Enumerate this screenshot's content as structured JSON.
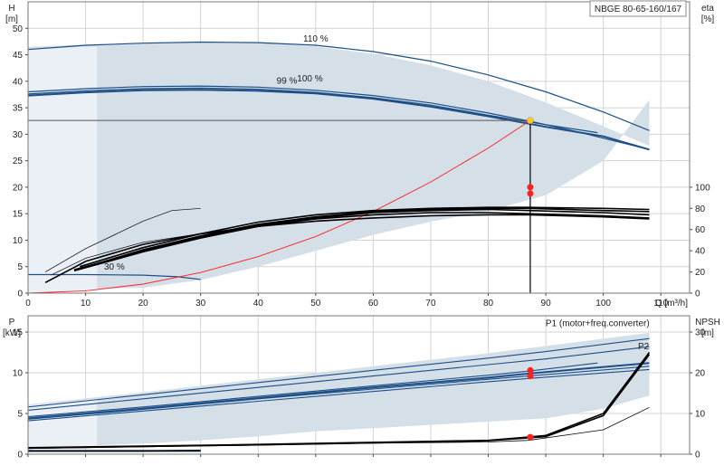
{
  "title": "NBGE 80-65-160/167",
  "chart_data": [
    {
      "panel": "pump-performance",
      "type": "line",
      "xlabel": "Q [m³/h]",
      "xlim": [
        0,
        115
      ],
      "x_ticks": [
        0,
        10,
        20,
        30,
        40,
        50,
        60,
        70,
        80,
        90,
        100,
        110
      ],
      "left_axis": {
        "label_top": "H",
        "label_unit": "[m]",
        "ylim": [
          0,
          55
        ],
        "ticks": [
          0,
          5,
          10,
          15,
          20,
          25,
          30,
          35,
          40,
          45,
          50
        ]
      },
      "right_axis": {
        "label_top": "eta",
        "label_unit": "[%]",
        "ylim": [
          0,
          275
        ],
        "ticks": [
          0,
          20,
          40,
          60,
          80,
          100
        ]
      },
      "grid": true,
      "colors": {
        "envelope": "#d5dfe8",
        "curve": "#1d4f87",
        "eta": "#000000",
        "system": "#ff2020",
        "duty": "#ff2020",
        "duty_point": "#f7d117"
      },
      "envelope": {
        "upper": [
          [
            0,
            46.5
          ],
          [
            10,
            46.9
          ],
          [
            20,
            47.2
          ],
          [
            30,
            47.4
          ],
          [
            40,
            47.3
          ],
          [
            50,
            46.6
          ],
          [
            60,
            45.2
          ],
          [
            70,
            43.0
          ],
          [
            80,
            40.0
          ],
          [
            90,
            36.0
          ],
          [
            100,
            31.5
          ],
          [
            108,
            27.8
          ]
        ],
        "lower": [
          [
            108,
            27.8
          ],
          [
            108,
            36.5
          ],
          [
            100,
            25
          ],
          [
            90,
            18.5
          ],
          [
            80,
            15.5
          ],
          [
            70,
            13.5
          ],
          [
            60,
            11
          ],
          [
            50,
            8
          ],
          [
            40,
            5
          ],
          [
            30,
            2.5
          ],
          [
            20,
            1
          ],
          [
            12,
            0.8
          ],
          [
            12,
            0.8
          ]
        ]
      },
      "duty_point": {
        "q": 87.3,
        "h": 32.6,
        "eta_markers": [
          20,
          18.8
        ]
      },
      "series": [
        {
          "name": "110 %",
          "axis": "left",
          "label": "110 %",
          "points": [
            [
              0,
              46.0
            ],
            [
              10,
              46.8
            ],
            [
              20,
              47.2
            ],
            [
              30,
              47.4
            ],
            [
              40,
              47.3
            ],
            [
              50,
              46.8
            ],
            [
              60,
              45.6
            ],
            [
              70,
              43.8
            ],
            [
              80,
              41.2
            ],
            [
              90,
              38.0
            ],
            [
              100,
              34.2
            ],
            [
              108,
              30.7
            ]
          ]
        },
        {
          "name": "100 %",
          "axis": "left",
          "label": "100 %",
          "points": [
            [
              0,
              38.0
            ],
            [
              10,
              38.6
            ],
            [
              20,
              39.0
            ],
            [
              30,
              39.1
            ],
            [
              40,
              38.9
            ],
            [
              50,
              38.3
            ],
            [
              60,
              37.3
            ],
            [
              70,
              35.9
            ],
            [
              80,
              34.0
            ],
            [
              88,
              32.3
            ],
            [
              95,
              30.6
            ],
            [
              108,
              27.1
            ]
          ]
        },
        {
          "name": "99 %",
          "axis": "left",
          "label": "99 %",
          "points": [
            [
              0,
              37.6
            ],
            [
              10,
              38.2
            ],
            [
              20,
              38.6
            ],
            [
              30,
              38.7
            ],
            [
              40,
              38.5
            ],
            [
              50,
              37.9
            ],
            [
              60,
              36.9
            ],
            [
              70,
              35.5
            ],
            [
              80,
              33.6
            ],
            [
              90,
              31.8
            ],
            [
              99,
              30.3
            ]
          ]
        },
        {
          "name": "100 %",
          "axis": "left",
          "points": [
            [
              0,
              37.3
            ],
            [
              10,
              37.9
            ],
            [
              20,
              38.3
            ],
            [
              30,
              38.4
            ],
            [
              40,
              38.2
            ],
            [
              50,
              37.7
            ],
            [
              60,
              36.7
            ],
            [
              70,
              35.2
            ],
            [
              80,
              33.4
            ],
            [
              90,
              31.4
            ],
            [
              100,
              29.6
            ],
            [
              108,
              27.1
            ]
          ]
        },
        {
          "name": "30 %",
          "axis": "left",
          "label": "30 %",
          "points": [
            [
              0,
              3.5
            ],
            [
              10,
              3.5
            ],
            [
              20,
              3.4
            ],
            [
              26,
              3.1
            ],
            [
              30,
              2.6
            ]
          ]
        },
        {
          "name": "system curve",
          "axis": "left",
          "points": [
            [
              0,
              0
            ],
            [
              10,
              0.45
            ],
            [
              20,
              1.7
            ],
            [
              30,
              3.9
            ],
            [
              40,
              6.9
            ],
            [
              50,
              10.7
            ],
            [
              60,
              15.4
            ],
            [
              70,
              21.0
            ],
            [
              80,
              27.4
            ],
            [
              87.3,
              32.6
            ]
          ]
        },
        {
          "name": "eta 110 %",
          "axis": "right",
          "points": [
            [
              9,
              25
            ],
            [
              20,
              43
            ],
            [
              30,
              56
            ],
            [
              40,
              67
            ],
            [
              50,
              74
            ],
            [
              60,
              78
            ],
            [
              70,
              80
            ],
            [
              80,
              81
            ],
            [
              87,
              81
            ],
            [
              100,
              80
            ],
            [
              108,
              79
            ]
          ]
        },
        {
          "name": "eta 100 %",
          "axis": "right",
          "points": [
            [
              9,
              23
            ],
            [
              20,
              41
            ],
            [
              30,
              54
            ],
            [
              40,
              65
            ],
            [
              50,
              72
            ],
            [
              60,
              77
            ],
            [
              70,
              79
            ],
            [
              80,
              80
            ],
            [
              87,
              80
            ],
            [
              100,
              78
            ],
            [
              108,
              77
            ]
          ]
        },
        {
          "name": "eta 99 %",
          "axis": "right",
          "points": [
            [
              8,
              22
            ],
            [
              20,
              40
            ],
            [
              30,
              53
            ],
            [
              40,
              64
            ],
            [
              50,
              71
            ],
            [
              60,
              76
            ],
            [
              70,
              78
            ],
            [
              80,
              79
            ],
            [
              87,
              78
            ],
            [
              100,
              76
            ],
            [
              108,
              74
            ]
          ]
        },
        {
          "name": "eta 95 %",
          "axis": "right",
          "points": [
            [
              8,
              21
            ],
            [
              20,
              39
            ],
            [
              30,
              52
            ],
            [
              40,
              63
            ],
            [
              50,
              70
            ],
            [
              60,
              74
            ],
            [
              70,
              76
            ],
            [
              80,
              76
            ],
            [
              87,
              75
            ],
            [
              100,
              73
            ],
            [
              108,
              71
            ]
          ]
        },
        {
          "name": "eta 90 %",
          "axis": "right",
          "points": [
            [
              3,
              10
            ],
            [
              10,
              30
            ],
            [
              20,
              46
            ],
            [
              30,
              56
            ],
            [
              40,
              63
            ],
            [
              50,
              68
            ],
            [
              60,
              71
            ],
            [
              70,
              73
            ],
            [
              80,
              74
            ],
            [
              87,
              74
            ],
            [
              100,
              72
            ],
            [
              108,
              70
            ]
          ]
        },
        {
          "name": "eta 50 %",
          "axis": "right",
          "points": [
            [
              4,
              17
            ],
            [
              10,
              33
            ],
            [
              20,
              48
            ],
            [
              30,
              56
            ]
          ]
        },
        {
          "name": "eta 70 %",
          "axis": "right",
          "points": [
            [
              3,
              20
            ],
            [
              10,
              42
            ],
            [
              20,
              68
            ],
            [
              25,
              78
            ],
            [
              30,
              80
            ]
          ]
        }
      ]
    },
    {
      "panel": "power-npsh",
      "type": "line",
      "xlim": [
        0,
        115
      ],
      "x_ticks": [
        0,
        10,
        20,
        30,
        40,
        50,
        60,
        70,
        80,
        90,
        100,
        110
      ],
      "left_axis": {
        "label_top": "P",
        "label_unit": "[kW]",
        "ylim": [
          0,
          17
        ],
        "ticks": [
          0,
          5,
          10,
          15
        ]
      },
      "right_axis": {
        "label_top": "NPSH",
        "label_unit": "[m]",
        "ylim": [
          0,
          34
        ],
        "ticks": [
          0,
          10,
          20,
          30
        ]
      },
      "annotations": [
        "P1 (motor+freq.converter)",
        "P2"
      ],
      "markers": {
        "p_values": [
          10.3,
          9.6
        ],
        "npsh_value": 4.2
      },
      "series": [
        {
          "name": "P1 (motor+freq.converter)",
          "axis": "left",
          "points": [
            [
              0,
              5.8
            ],
            [
              20,
              7.3
            ],
            [
              40,
              8.8
            ],
            [
              60,
              10.3
            ],
            [
              80,
              11.8
            ],
            [
              90,
              12.6
            ],
            [
              108,
              14.2
            ]
          ]
        },
        {
          "name": "P1 inner",
          "axis": "left",
          "points": [
            [
              0,
              5.4
            ],
            [
              20,
              6.8
            ],
            [
              40,
              8.2
            ],
            [
              60,
              9.6
            ],
            [
              80,
              11.0
            ],
            [
              90,
              11.7
            ],
            [
              108,
              13.2
            ]
          ]
        },
        {
          "name": "P2 110 %",
          "axis": "left",
          "points": [
            [
              0,
              4.6
            ],
            [
              20,
              5.8
            ],
            [
              40,
              7.1
            ],
            [
              60,
              8.4
            ],
            [
              80,
              9.7
            ],
            [
              87,
              10.2
            ],
            [
              99,
              11.2
            ]
          ]
        },
        {
          "name": "P2 100 %",
          "axis": "left",
          "points": [
            [
              0,
              4.4
            ],
            [
              20,
              5.6
            ],
            [
              40,
              6.9
            ],
            [
              60,
              8.2
            ],
            [
              80,
              9.4
            ],
            [
              87,
              9.9
            ],
            [
              108,
              11.2
            ]
          ]
        },
        {
          "name": "P2 99 %",
          "axis": "left",
          "points": [
            [
              0,
              4.3
            ],
            [
              20,
              5.5
            ],
            [
              40,
              6.8
            ],
            [
              60,
              8.0
            ],
            [
              80,
              9.2
            ],
            [
              87,
              9.6
            ],
            [
              108,
              10.8
            ]
          ]
        },
        {
          "name": "P2 low",
          "axis": "left",
          "points": [
            [
              0,
              4.1
            ],
            [
              20,
              5.3
            ],
            [
              40,
              6.5
            ],
            [
              60,
              7.7
            ],
            [
              80,
              8.9
            ],
            [
              87,
              9.3
            ],
            [
              108,
              10.4
            ]
          ]
        },
        {
          "name": "P 30 %",
          "axis": "left",
          "points": [
            [
              0,
              0.4
            ],
            [
              10,
              0.4
            ],
            [
              20,
              0.4
            ],
            [
              30,
              0.4
            ]
          ]
        },
        {
          "name": "NPSH 110 %",
          "axis": "right",
          "points": [
            [
              0,
              1.6
            ],
            [
              20,
              2.0
            ],
            [
              40,
              2.4
            ],
            [
              60,
              2.9
            ],
            [
              80,
              3.4
            ],
            [
              87,
              4.2
            ],
            [
              90,
              4.6
            ],
            [
              100,
              10
            ],
            [
              108,
              25
            ]
          ]
        },
        {
          "name": "NPSH 100 %",
          "axis": "right",
          "points": [
            [
              0,
              1.5
            ],
            [
              20,
              1.9
            ],
            [
              40,
              2.3
            ],
            [
              60,
              2.8
            ],
            [
              80,
              3.3
            ],
            [
              87,
              4.0
            ],
            [
              90,
              4.3
            ],
            [
              100,
              9.5
            ],
            [
              108,
              24.5
            ]
          ]
        },
        {
          "name": "NPSH 99 %",
          "axis": "right",
          "points": [
            [
              0,
              1.4
            ],
            [
              20,
              1.8
            ],
            [
              40,
              2.2
            ],
            [
              60,
              2.7
            ],
            [
              80,
              3.0
            ],
            [
              87,
              3.4
            ],
            [
              100,
              6
            ],
            [
              108,
              11.5
            ]
          ]
        },
        {
          "name": "NPSH 30 %",
          "axis": "right",
          "points": [
            [
              0,
              0.8
            ],
            [
              10,
              0.8
            ],
            [
              20,
              0.8
            ],
            [
              30,
              0.9
            ]
          ]
        }
      ]
    }
  ]
}
